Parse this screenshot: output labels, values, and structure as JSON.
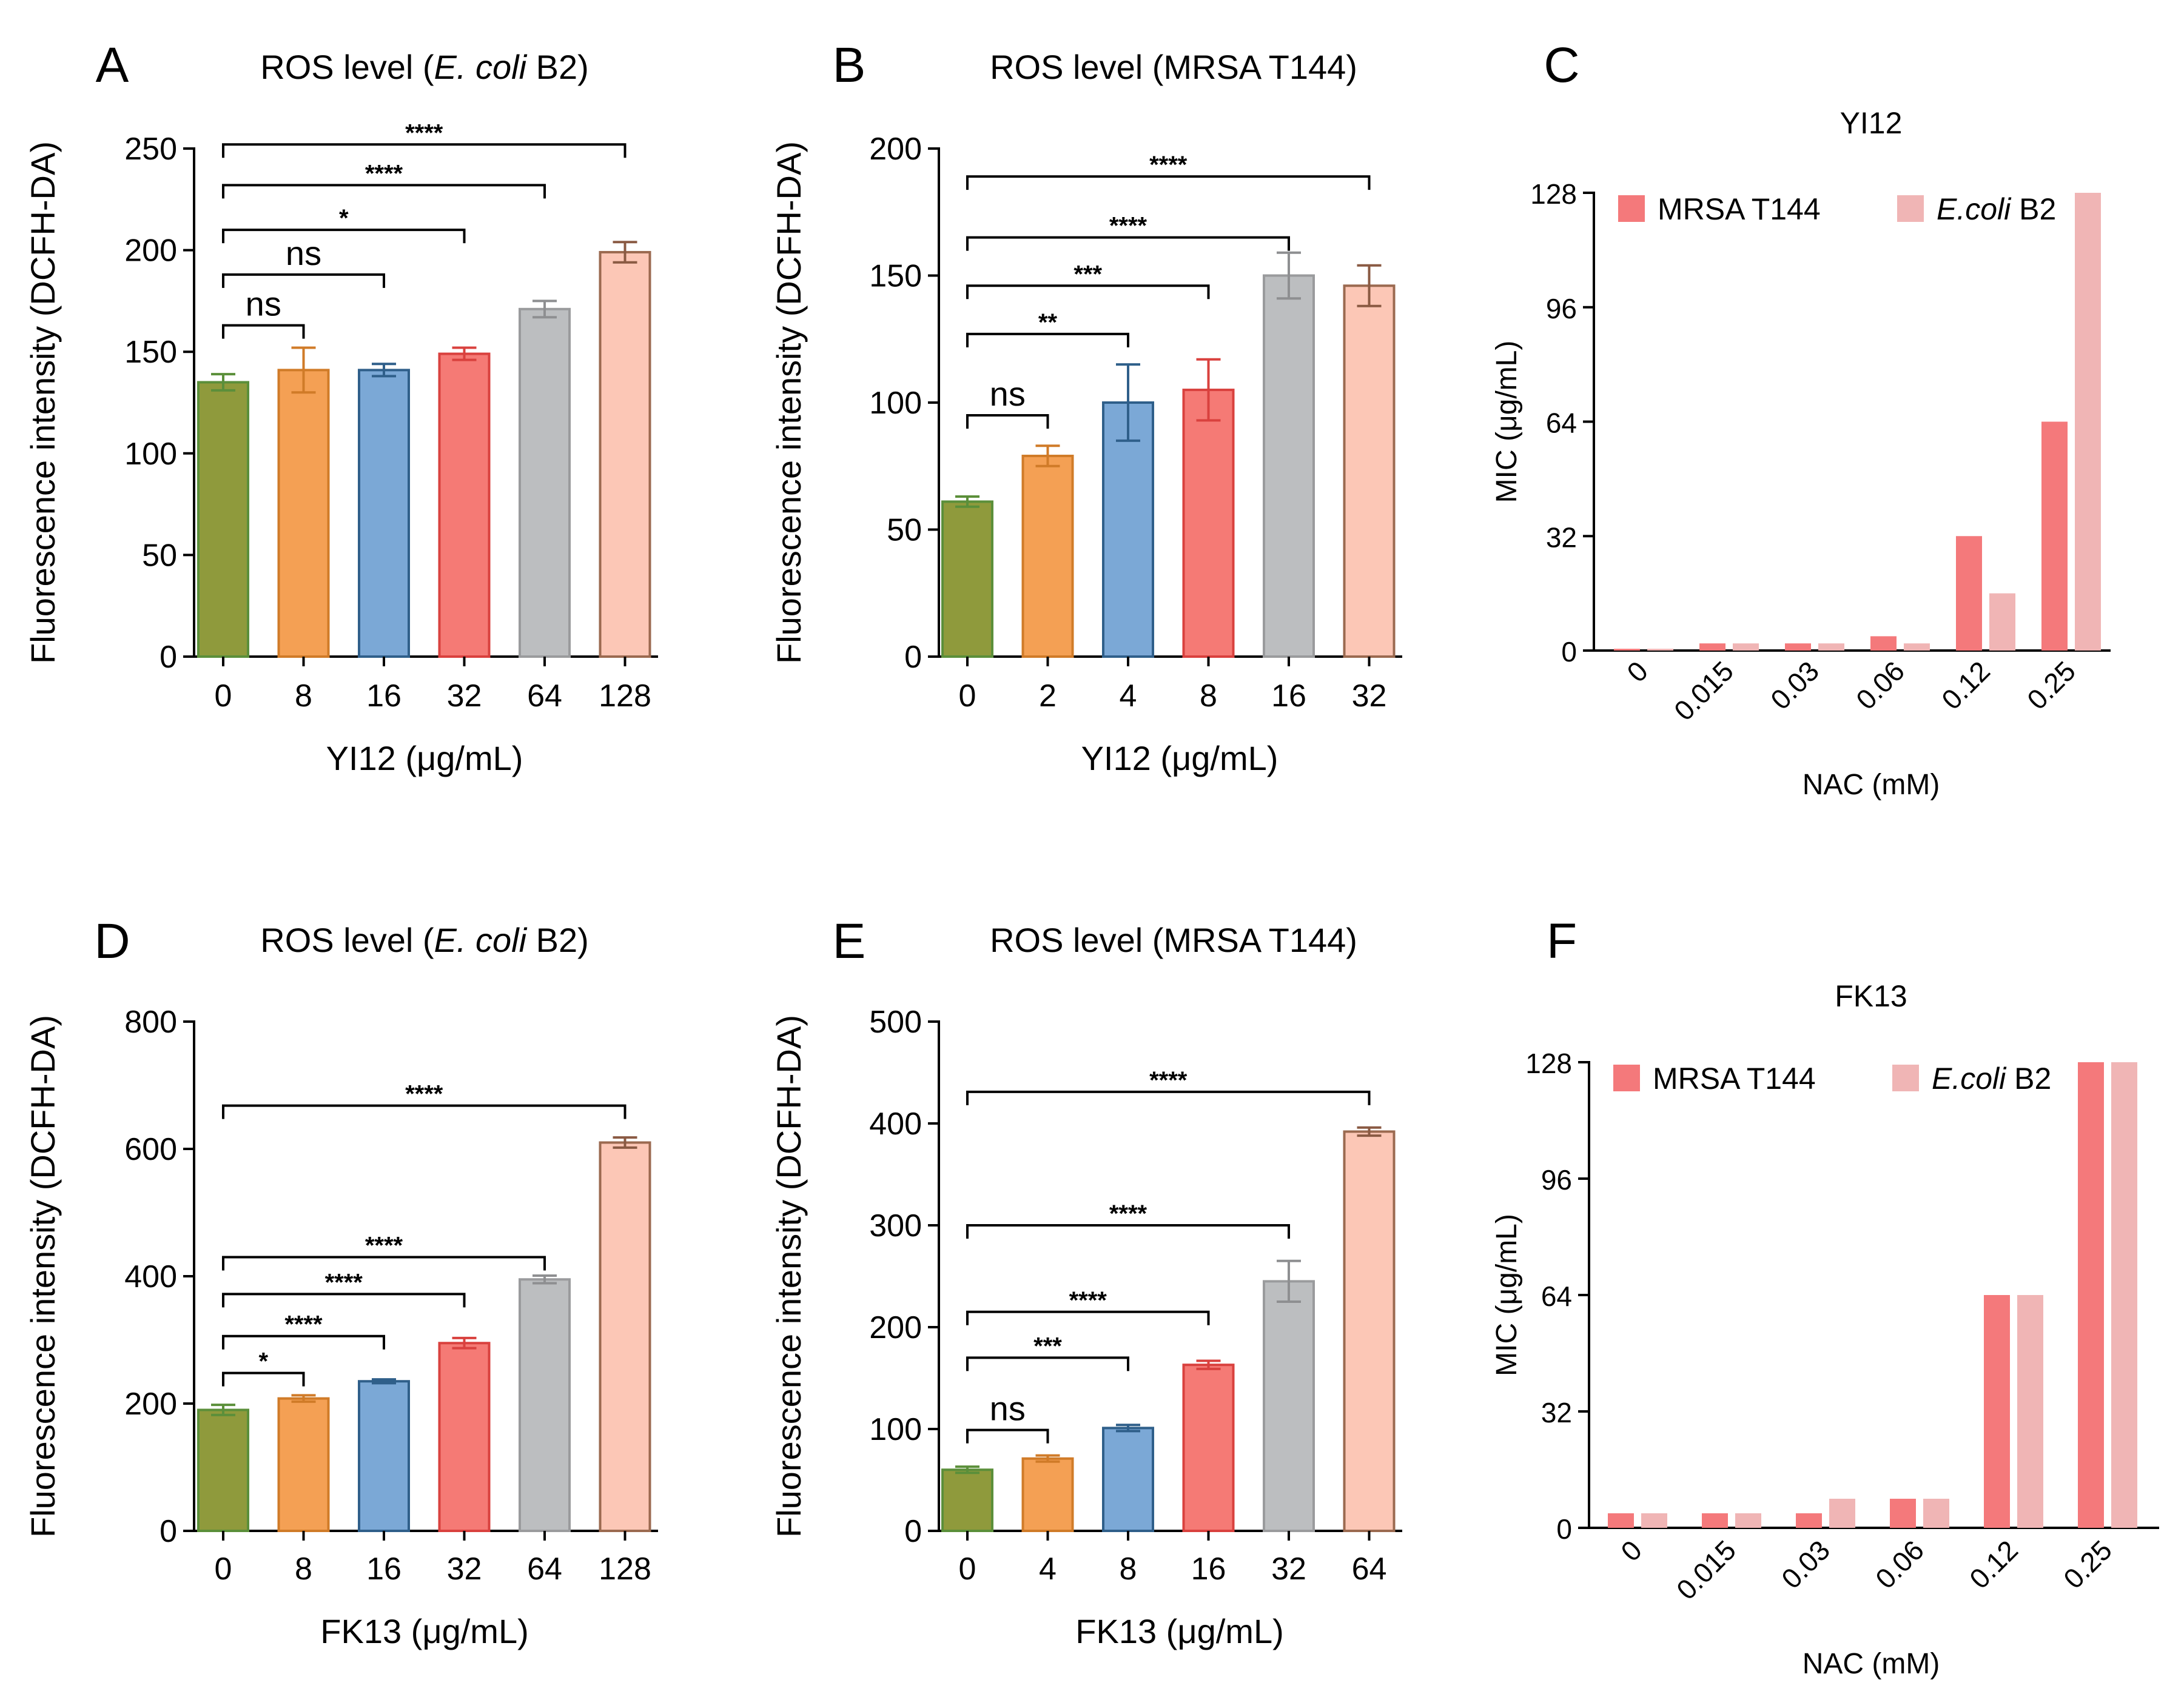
{
  "figure": {
    "colors": {
      "bars": [
        "#8f9a3c",
        "#f4a054",
        "#7ba8d6",
        "#f57a75",
        "#bcbec0",
        "#fcc7b6"
      ],
      "bar_strokes": [
        "#5b8f3a",
        "#d07b28",
        "#2f5f8a",
        "#d9413e",
        "#9a9b9d",
        "#9b6a50"
      ],
      "error_bars": [
        "#5b8f3a",
        "#d07b28",
        "#2f5f8a",
        "#d9413e",
        "#8e8f91",
        "#8a5a43"
      ],
      "mrsa": "#f4797b",
      "ecoli": "#f0b5b5"
    }
  },
  "chart_data": [
    {
      "id": "A",
      "letter": "A",
      "type": "bar",
      "title_parts": [
        "ROS level (",
        "E. coli",
        " B2)"
      ],
      "ylabel": "Fluorescence intensity (DCFH-DA)",
      "xlabel": "YI12 (μg/mL)",
      "categories": [
        "0",
        "8",
        "16",
        "32",
        "64",
        "128"
      ],
      "values": [
        135,
        141,
        141,
        149,
        171,
        199
      ],
      "errors": [
        4,
        11,
        3,
        3,
        4,
        5
      ],
      "ylim": [
        0,
        250
      ],
      "yticks": [
        0,
        50,
        100,
        150,
        200,
        250
      ],
      "yticklabels": [
        "0",
        "50",
        "100",
        "150",
        "200",
        "250"
      ],
      "comparisons": [
        {
          "from": 0,
          "to": 1,
          "label": "ns",
          "y": 163
        },
        {
          "from": 0,
          "to": 2,
          "label": "ns",
          "y": 188
        },
        {
          "from": 0,
          "to": 3,
          "label": "*",
          "y": 210
        },
        {
          "from": 0,
          "to": 4,
          "label": "****",
          "y": 232
        },
        {
          "from": 0,
          "to": 5,
          "label": "****",
          "y": 252
        }
      ]
    },
    {
      "id": "B",
      "letter": "B",
      "type": "bar",
      "title_parts": [
        "ROS level (MRSA T144)",
        "",
        ""
      ],
      "ylabel": "Fluorescence intensity (DCFH-DA)",
      "xlabel": "YI12 (μg/mL)",
      "categories": [
        "0",
        "2",
        "4",
        "8",
        "16",
        "32"
      ],
      "values": [
        61,
        79,
        100,
        105,
        150,
        146
      ],
      "errors": [
        2,
        4,
        15,
        12,
        9,
        8
      ],
      "ylim": [
        0,
        200
      ],
      "yticks": [
        0,
        50,
        100,
        150,
        200
      ],
      "yticklabels": [
        "0",
        "50",
        "100",
        "150",
        "200"
      ],
      "comparisons": [
        {
          "from": 0,
          "to": 1,
          "label": "ns",
          "y": 95
        },
        {
          "from": 0,
          "to": 2,
          "label": "**",
          "y": 127
        },
        {
          "from": 0,
          "to": 3,
          "label": "***",
          "y": 146
        },
        {
          "from": 0,
          "to": 4,
          "label": "****",
          "y": 165
        },
        {
          "from": 0,
          "to": 5,
          "label": "****",
          "y": 189
        }
      ]
    },
    {
      "id": "C",
      "letter": "C",
      "type": "grouped-bar",
      "title": "YI12",
      "ylabel": "MIC (μg/mL)",
      "xlabel": "NAC (mM)",
      "categories": [
        "0",
        "0.015",
        "0.03",
        "0.06",
        "0.12",
        "0.25"
      ],
      "series": [
        {
          "name": "MRSA T144",
          "values": [
            0.5,
            2,
            2,
            4,
            32,
            64
          ]
        },
        {
          "name": "E.coli",
          "name_suffix": " B2",
          "values": [
            0.5,
            2,
            2,
            2,
            16,
            128
          ]
        }
      ],
      "ylim": [
        0,
        128
      ],
      "yticks": [
        0,
        32,
        64,
        96,
        128
      ],
      "yticklabels": [
        "0",
        "32",
        "64",
        "96",
        "128"
      ]
    },
    {
      "id": "D",
      "letter": "D",
      "type": "bar",
      "title_parts": [
        "ROS level (",
        "E. coli",
        " B2)"
      ],
      "ylabel": "Fluorescence intensity (DCFH-DA)",
      "xlabel": "FK13 (μg/mL)",
      "categories": [
        "0",
        "8",
        "16",
        "32",
        "64",
        "128"
      ],
      "values": [
        190,
        208,
        235,
        295,
        395,
        610
      ],
      "errors": [
        8,
        5,
        3,
        8,
        6,
        8
      ],
      "ylim": [
        0,
        800
      ],
      "yticks": [
        0,
        200,
        400,
        600,
        800
      ],
      "yticklabels": [
        "0",
        "200",
        "400",
        "600",
        "800"
      ],
      "comparisons": [
        {
          "from": 0,
          "to": 1,
          "label": "*",
          "y": 248
        },
        {
          "from": 0,
          "to": 2,
          "label": "****",
          "y": 306
        },
        {
          "from": 0,
          "to": 3,
          "label": "****",
          "y": 372
        },
        {
          "from": 0,
          "to": 4,
          "label": "****",
          "y": 430
        },
        {
          "from": 0,
          "to": 5,
          "label": "****",
          "y": 668
        }
      ]
    },
    {
      "id": "E",
      "letter": "E",
      "type": "bar",
      "title_parts": [
        "ROS level (MRSA T144)",
        "",
        ""
      ],
      "ylabel": "Fluorescence intensity (DCFH-DA)",
      "xlabel": "FK13 (μg/mL)",
      "categories": [
        "0",
        "4",
        "8",
        "16",
        "32",
        "64"
      ],
      "values": [
        60,
        71,
        101,
        163,
        245,
        392
      ],
      "errors": [
        3,
        3,
        3,
        4,
        20,
        4
      ],
      "ylim": [
        0,
        500
      ],
      "yticks": [
        0,
        100,
        200,
        300,
        400,
        500
      ],
      "yticklabels": [
        "0",
        "100",
        "200",
        "300",
        "400",
        "500"
      ],
      "comparisons": [
        {
          "from": 0,
          "to": 1,
          "label": "ns",
          "y": 99
        },
        {
          "from": 0,
          "to": 2,
          "label": "***",
          "y": 170
        },
        {
          "from": 0,
          "to": 3,
          "label": "****",
          "y": 215
        },
        {
          "from": 0,
          "to": 4,
          "label": "****",
          "y": 300
        },
        {
          "from": 0,
          "to": 5,
          "label": "****",
          "y": 431
        }
      ]
    },
    {
      "id": "F",
      "letter": "F",
      "type": "grouped-bar",
      "title": "FK13",
      "ylabel": "MIC (μg/mL)",
      "xlabel": "NAC (mM)",
      "categories": [
        "0",
        "0.015",
        "0.03",
        "0.06",
        "0.12",
        "0.25"
      ],
      "series": [
        {
          "name": "MRSA T144",
          "values": [
            4,
            4,
            4,
            8,
            64,
            128
          ]
        },
        {
          "name": "E.coli",
          "name_suffix": " B2",
          "values": [
            4,
            4,
            8,
            8,
            64,
            128
          ]
        }
      ],
      "ylim": [
        0,
        128
      ],
      "yticks": [
        0,
        32,
        64,
        96,
        128
      ],
      "yticklabels": [
        "0",
        "32",
        "64",
        "96",
        "128"
      ]
    }
  ]
}
